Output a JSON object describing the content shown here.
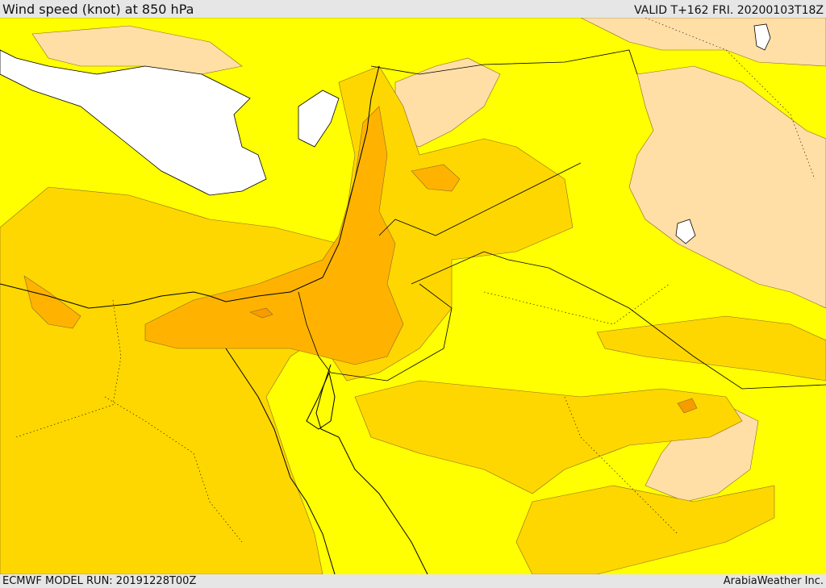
{
  "header": {
    "title": "Wind speed (knot) at 850 hPa",
    "valid": "VALID T+162 FRI. 20200103T18Z"
  },
  "footer": {
    "model_run": "ECMWF MODEL RUN: 20191228T00Z",
    "credit": "ArabiaWeather Inc."
  },
  "colors": {
    "sea": "#ffffff",
    "band_low": "#ffdfa6",
    "band_mid": "#ffff00",
    "band_high": "#ffd700",
    "band_higher": "#ffb300",
    "band_highest": "#f79c00",
    "coast": "#000000",
    "border": "#000000"
  }
}
